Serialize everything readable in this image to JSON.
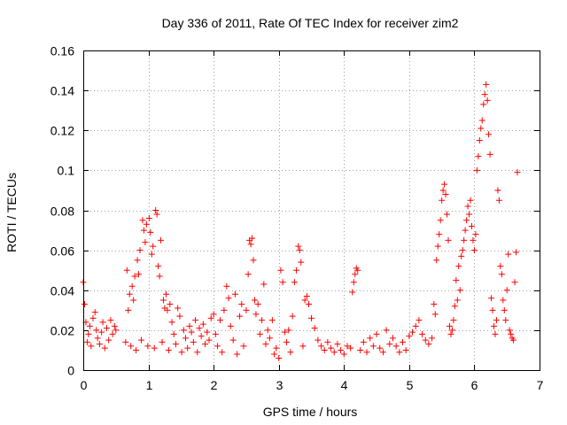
{
  "chart_data": {
    "type": "scatter",
    "title": "Day 336 of 2011, Rate Of TEC Index for receiver zim2",
    "xlabel": "GPS time / hours",
    "ylabel": "ROTI / TECUs",
    "xlim": [
      0,
      7
    ],
    "ylim": [
      0,
      0.16
    ],
    "xticks": [
      "0",
      "1",
      "2",
      "3",
      "4",
      "5",
      "6",
      "7"
    ],
    "yticks": [
      "0",
      "0.02",
      "0.04",
      "0.06",
      "0.08",
      "0.1",
      "0.12",
      "0.14",
      "0.16"
    ],
    "grid": true,
    "marker": "+",
    "color": "#ff0000",
    "series": [
      {
        "name": "ROTI",
        "points": [
          [
            0.0,
            0.044
          ],
          [
            0.02,
            0.033
          ],
          [
            0.04,
            0.024
          ],
          [
            0.06,
            0.014
          ],
          [
            0.08,
            0.018
          ],
          [
            0.1,
            0.022
          ],
          [
            0.12,
            0.012
          ],
          [
            0.15,
            0.026
          ],
          [
            0.18,
            0.029
          ],
          [
            0.2,
            0.02
          ],
          [
            0.22,
            0.016
          ],
          [
            0.25,
            0.013
          ],
          [
            0.28,
            0.019
          ],
          [
            0.3,
            0.024
          ],
          [
            0.33,
            0.011
          ],
          [
            0.36,
            0.021
          ],
          [
            0.39,
            0.015
          ],
          [
            0.42,
            0.025
          ],
          [
            0.45,
            0.018
          ],
          [
            0.48,
            0.022
          ],
          [
            0.5,
            0.02
          ],
          [
            0.65,
            0.014
          ],
          [
            0.67,
            0.05
          ],
          [
            0.69,
            0.03
          ],
          [
            0.71,
            0.038
          ],
          [
            0.73,
            0.012
          ],
          [
            0.75,
            0.042
          ],
          [
            0.77,
            0.035
          ],
          [
            0.79,
            0.047
          ],
          [
            0.81,
            0.01
          ],
          [
            0.83,
            0.055
          ],
          [
            0.85,
            0.048
          ],
          [
            0.87,
            0.06
          ],
          [
            0.89,
            0.015
          ],
          [
            0.91,
            0.075
          ],
          [
            0.93,
            0.07
          ],
          [
            0.95,
            0.064
          ],
          [
            0.97,
            0.073
          ],
          [
            0.99,
            0.012
          ],
          [
            1.01,
            0.076
          ],
          [
            1.03,
            0.069
          ],
          [
            1.05,
            0.058
          ],
          [
            1.07,
            0.062
          ],
          [
            1.09,
            0.011
          ],
          [
            1.11,
            0.08
          ],
          [
            1.13,
            0.078
          ],
          [
            1.15,
            0.052
          ],
          [
            1.17,
            0.047
          ],
          [
            1.19,
            0.065
          ],
          [
            1.21,
            0.014
          ],
          [
            1.23,
            0.035
          ],
          [
            1.25,
            0.031
          ],
          [
            1.27,
            0.038
          ],
          [
            1.29,
            0.03
          ],
          [
            1.31,
            0.01
          ],
          [
            1.33,
            0.033
          ],
          [
            1.36,
            0.024
          ],
          [
            1.39,
            0.018
          ],
          [
            1.42,
            0.013
          ],
          [
            1.45,
            0.031
          ],
          [
            1.48,
            0.027
          ],
          [
            1.51,
            0.009
          ],
          [
            1.54,
            0.02
          ],
          [
            1.57,
            0.016
          ],
          [
            1.6,
            0.011
          ],
          [
            1.63,
            0.022
          ],
          [
            1.66,
            0.019
          ],
          [
            1.69,
            0.014
          ],
          [
            1.72,
            0.025
          ],
          [
            1.75,
            0.009
          ],
          [
            1.78,
            0.021
          ],
          [
            1.81,
            0.017
          ],
          [
            1.84,
            0.023
          ],
          [
            1.87,
            0.013
          ],
          [
            1.9,
            0.019
          ],
          [
            1.93,
            0.015
          ],
          [
            1.96,
            0.026
          ],
          [
            2.0,
            0.028
          ],
          [
            2.03,
            0.018
          ],
          [
            2.06,
            0.012
          ],
          [
            2.1,
            0.025
          ],
          [
            2.13,
            0.009
          ],
          [
            2.16,
            0.03
          ],
          [
            2.2,
            0.042
          ],
          [
            2.23,
            0.036
          ],
          [
            2.26,
            0.022
          ],
          [
            2.3,
            0.015
          ],
          [
            2.33,
            0.038
          ],
          [
            2.36,
            0.008
          ],
          [
            2.4,
            0.027
          ],
          [
            2.43,
            0.033
          ],
          [
            2.46,
            0.012
          ],
          [
            2.5,
            0.03
          ],
          [
            2.53,
            0.048
          ],
          [
            2.55,
            0.065
          ],
          [
            2.57,
            0.063
          ],
          [
            2.59,
            0.066
          ],
          [
            2.61,
            0.055
          ],
          [
            2.63,
            0.035
          ],
          [
            2.65,
            0.028
          ],
          [
            2.68,
            0.033
          ],
          [
            2.71,
            0.018
          ],
          [
            2.74,
            0.025
          ],
          [
            2.77,
            0.043
          ],
          [
            2.8,
            0.013
          ],
          [
            2.83,
            0.02
          ],
          [
            2.86,
            0.016
          ],
          [
            2.9,
            0.025
          ],
          [
            2.93,
            0.008
          ],
          [
            2.96,
            0.011
          ],
          [
            3.0,
            0.006
          ],
          [
            3.03,
            0.05
          ],
          [
            3.06,
            0.044
          ],
          [
            3.09,
            0.019
          ],
          [
            3.12,
            0.014
          ],
          [
            3.15,
            0.02
          ],
          [
            3.18,
            0.009
          ],
          [
            3.21,
            0.027
          ],
          [
            3.24,
            0.044
          ],
          [
            3.27,
            0.05
          ],
          [
            3.3,
            0.062
          ],
          [
            3.32,
            0.06
          ],
          [
            3.34,
            0.054
          ],
          [
            3.37,
            0.012
          ],
          [
            3.4,
            0.035
          ],
          [
            3.43,
            0.037
          ],
          [
            3.46,
            0.033
          ],
          [
            3.5,
            0.026
          ],
          [
            3.55,
            0.021
          ],
          [
            3.6,
            0.015
          ],
          [
            3.65,
            0.012
          ],
          [
            3.7,
            0.01
          ],
          [
            3.75,
            0.014
          ],
          [
            3.8,
            0.011
          ],
          [
            3.85,
            0.009
          ],
          [
            3.9,
            0.013
          ],
          [
            3.95,
            0.01
          ],
          [
            4.0,
            0.008
          ],
          [
            4.05,
            0.012
          ],
          [
            4.1,
            0.011
          ],
          [
            4.13,
            0.039
          ],
          [
            4.15,
            0.044
          ],
          [
            4.17,
            0.048
          ],
          [
            4.19,
            0.051
          ],
          [
            4.21,
            0.05
          ],
          [
            4.25,
            0.01
          ],
          [
            4.3,
            0.014
          ],
          [
            4.35,
            0.009
          ],
          [
            4.4,
            0.016
          ],
          [
            4.45,
            0.012
          ],
          [
            4.5,
            0.018
          ],
          [
            4.55,
            0.011
          ],
          [
            4.6,
            0.009
          ],
          [
            4.65,
            0.02
          ],
          [
            4.7,
            0.013
          ],
          [
            4.75,
            0.016
          ],
          [
            4.8,
            0.012
          ],
          [
            4.85,
            0.009
          ],
          [
            4.9,
            0.014
          ],
          [
            4.95,
            0.01
          ],
          [
            5.0,
            0.017
          ],
          [
            5.05,
            0.019
          ],
          [
            5.1,
            0.022
          ],
          [
            5.15,
            0.025
          ],
          [
            5.2,
            0.018
          ],
          [
            5.25,
            0.015
          ],
          [
            5.3,
            0.013
          ],
          [
            5.35,
            0.016
          ],
          [
            5.38,
            0.033
          ],
          [
            5.4,
            0.028
          ],
          [
            5.42,
            0.055
          ],
          [
            5.44,
            0.062
          ],
          [
            5.46,
            0.068
          ],
          [
            5.48,
            0.075
          ],
          [
            5.5,
            0.085
          ],
          [
            5.52,
            0.09
          ],
          [
            5.54,
            0.093
          ],
          [
            5.56,
            0.088
          ],
          [
            5.58,
            0.078
          ],
          [
            5.6,
            0.065
          ],
          [
            5.62,
            0.022
          ],
          [
            5.64,
            0.018
          ],
          [
            5.66,
            0.02
          ],
          [
            5.68,
            0.025
          ],
          [
            5.7,
            0.032
          ],
          [
            5.72,
            0.045
          ],
          [
            5.74,
            0.035
          ],
          [
            5.76,
            0.052
          ],
          [
            5.78,
            0.04
          ],
          [
            5.8,
            0.057
          ],
          [
            5.82,
            0.06
          ],
          [
            5.84,
            0.065
          ],
          [
            5.86,
            0.07
          ],
          [
            5.88,
            0.075
          ],
          [
            5.9,
            0.082
          ],
          [
            5.92,
            0.078
          ],
          [
            5.94,
            0.085
          ],
          [
            5.96,
            0.072
          ],
          [
            5.98,
            0.065
          ],
          [
            6.0,
            0.06
          ],
          [
            6.02,
            0.068
          ],
          [
            6.04,
            0.1
          ],
          [
            6.06,
            0.107
          ],
          [
            6.08,
            0.115
          ],
          [
            6.1,
            0.121
          ],
          [
            6.12,
            0.125
          ],
          [
            6.14,
            0.133
          ],
          [
            6.16,
            0.138
          ],
          [
            6.18,
            0.143
          ],
          [
            6.2,
            0.135
          ],
          [
            6.22,
            0.118
          ],
          [
            6.24,
            0.108
          ],
          [
            6.26,
            0.036
          ],
          [
            6.28,
            0.03
          ],
          [
            6.3,
            0.022
          ],
          [
            6.32,
            0.018
          ],
          [
            6.34,
            0.025
          ],
          [
            6.36,
            0.09
          ],
          [
            6.38,
            0.085
          ],
          [
            6.4,
            0.052
          ],
          [
            6.42,
            0.048
          ],
          [
            6.44,
            0.035
          ],
          [
            6.46,
            0.03
          ],
          [
            6.48,
            0.025
          ],
          [
            6.5,
            0.04
          ],
          [
            6.52,
            0.058
          ],
          [
            6.54,
            0.02
          ],
          [
            6.56,
            0.018
          ],
          [
            6.58,
            0.016
          ],
          [
            6.6,
            0.015
          ],
          [
            6.62,
            0.044
          ],
          [
            6.64,
            0.059
          ],
          [
            6.66,
            0.099
          ]
        ]
      }
    ]
  }
}
